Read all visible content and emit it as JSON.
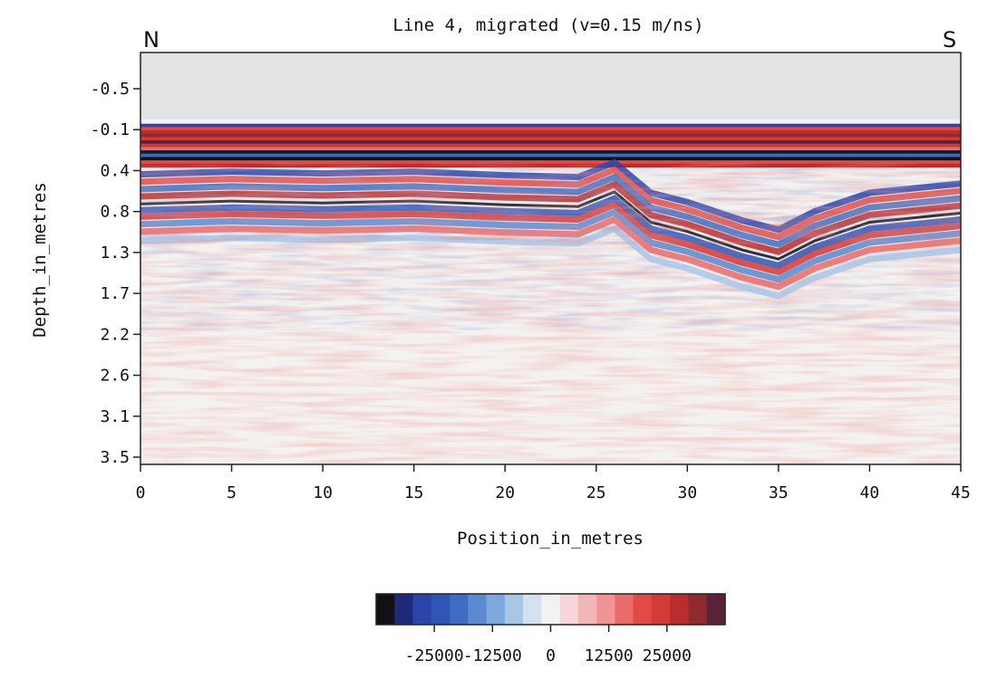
{
  "chart_data": {
    "type": "heatmap",
    "title": "Line 4, migrated (v=0.15 m/ns)",
    "direction_left": "N",
    "direction_right": "S",
    "xlabel": "Position_in_metres",
    "ylabel": "Depth_in_metres",
    "xlim": [
      0,
      45
    ],
    "ylim": [
      -0.5,
      3.5
    ],
    "x_ticks": [
      "0",
      "5",
      "10",
      "15",
      "20",
      "25",
      "30",
      "35",
      "40",
      "45"
    ],
    "y_ticks": [
      "-0.5",
      "-0.1",
      "0.4",
      "0.8",
      "1.3",
      "1.7",
      "2.2",
      "2.6",
      "3.1",
      "3.5"
    ],
    "colorbar": {
      "range": [
        -37500,
        37500
      ],
      "tick_labels": [
        "-25000",
        "-12500",
        "0",
        "12500",
        "25000"
      ],
      "tick_values": [
        -25000,
        -12500,
        0,
        12500,
        25000
      ],
      "colors": [
        "#101015",
        "#1f2b7a",
        "#2a44a8",
        "#2f55b5",
        "#3e6cc0",
        "#5b8ad0",
        "#7ea8dc",
        "#a9c6e6",
        "#d4e2ef",
        "#f2f2f2",
        "#f6d6d8",
        "#f2b6b8",
        "#ee9496",
        "#e96c6b",
        "#e24a45",
        "#d33a38",
        "#b82e2f",
        "#8e2a30",
        "#5a2238"
      ]
    },
    "features": {
      "air_region_depth_end": -0.12,
      "direct_wave_band": [
        -0.12,
        0.35
      ],
      "reflector_profile": [
        [
          0,
          0.75
        ],
        [
          5,
          0.72
        ],
        [
          10,
          0.74
        ],
        [
          15,
          0.72
        ],
        [
          20,
          0.76
        ],
        [
          24,
          0.78
        ],
        [
          26,
          0.62
        ],
        [
          28,
          0.95
        ],
        [
          30,
          1.05
        ],
        [
          33,
          1.25
        ],
        [
          35,
          1.35
        ],
        [
          37,
          1.15
        ],
        [
          40,
          0.95
        ],
        [
          45,
          0.85
        ]
      ]
    }
  }
}
